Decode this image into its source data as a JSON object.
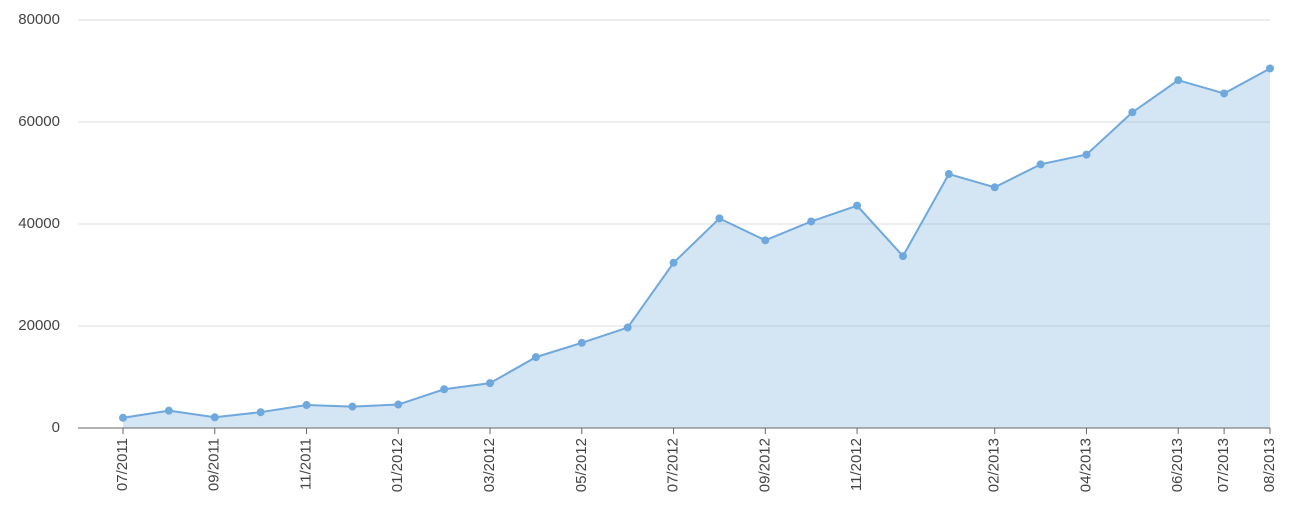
{
  "chart_data": {
    "type": "area",
    "categories": [
      "07/2011",
      null,
      "09/2011",
      null,
      "11/2011",
      null,
      "01/2012",
      null,
      "03/2012",
      null,
      "05/2012",
      null,
      "07/2012",
      null,
      "09/2012",
      null,
      "11/2012",
      null,
      null,
      "02/2013",
      null,
      "04/2013",
      null,
      "06/2013",
      "07/2013",
      "08/2013"
    ],
    "values": [
      2000,
      3400,
      2100,
      3100,
      4500,
      4200,
      4600,
      7600,
      8800,
      13900,
      16700,
      19700,
      32400,
      41100,
      36800,
      40500,
      43600,
      33700,
      49800,
      47200,
      51700,
      53600,
      61900,
      68200,
      65600,
      70500
    ],
    "color": "#6fa8dc",
    "ylim": [
      0,
      80000
    ],
    "yticks": [
      0,
      20000,
      40000,
      60000,
      80000
    ],
    "grid": true
  }
}
